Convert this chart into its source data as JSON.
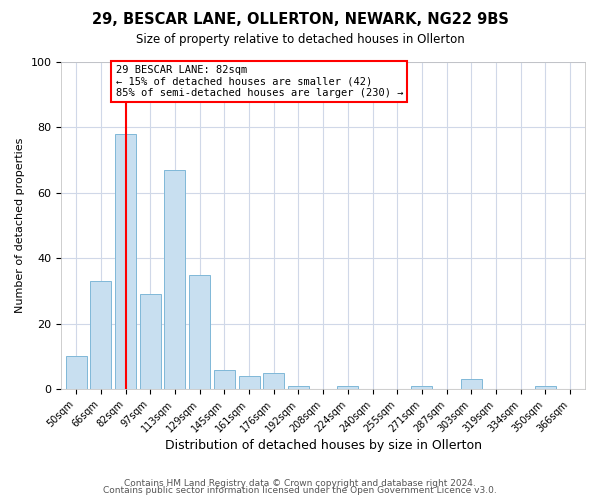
{
  "title": "29, BESCAR LANE, OLLERTON, NEWARK, NG22 9BS",
  "subtitle": "Size of property relative to detached houses in Ollerton",
  "xlabel": "Distribution of detached houses by size in Ollerton",
  "ylabel": "Number of detached properties",
  "bar_color": "#c8dff0",
  "bar_edgecolor": "#7fb8d8",
  "annotation_line1": "29 BESCAR LANE: 82sqm",
  "annotation_line2": "← 15% of detached houses are smaller (42)",
  "annotation_line3": "85% of semi-detached houses are larger (230) →",
  "annotation_box_edgecolor": "red",
  "vline_color": "red",
  "categories": [
    "50sqm",
    "66sqm",
    "82sqm",
    "97sqm",
    "113sqm",
    "129sqm",
    "145sqm",
    "161sqm",
    "176sqm",
    "192sqm",
    "208sqm",
    "224sqm",
    "240sqm",
    "255sqm",
    "271sqm",
    "287sqm",
    "303sqm",
    "319sqm",
    "334sqm",
    "350sqm",
    "366sqm"
  ],
  "values": [
    10,
    33,
    78,
    29,
    67,
    35,
    6,
    4,
    5,
    1,
    0,
    1,
    0,
    0,
    1,
    0,
    3,
    0,
    0,
    1,
    0
  ],
  "ylim": [
    0,
    100
  ],
  "footer1": "Contains HM Land Registry data © Crown copyright and database right 2024.",
  "footer2": "Contains public sector information licensed under the Open Government Licence v3.0.",
  "background_color": "#ffffff",
  "plot_background": "#ffffff",
  "grid_color": "#d0d8e8",
  "figsize": [
    6.0,
    5.0
  ],
  "dpi": 100
}
